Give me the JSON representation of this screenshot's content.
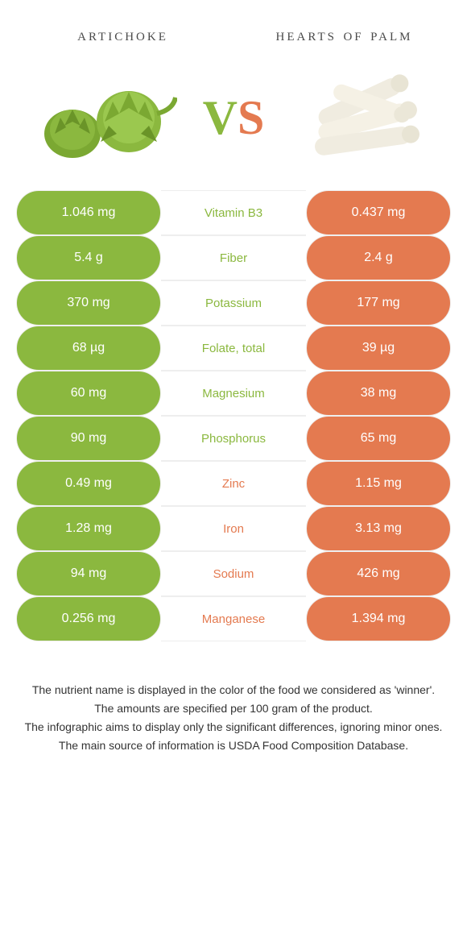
{
  "header": {
    "left_title": "artichoke",
    "right_title": "hearts of palm",
    "vs_v": "V",
    "vs_s": "S"
  },
  "colors": {
    "green": "#8bb83f",
    "orange": "#e47a50",
    "background": "#ffffff",
    "border": "#eeeeee",
    "text": "#333333"
  },
  "rows": [
    {
      "left": "1.046 mg",
      "nutrient": "Vitamin B3",
      "right": "0.437 mg",
      "winner": "green"
    },
    {
      "left": "5.4 g",
      "nutrient": "Fiber",
      "right": "2.4 g",
      "winner": "green"
    },
    {
      "left": "370 mg",
      "nutrient": "Potassium",
      "right": "177 mg",
      "winner": "green"
    },
    {
      "left": "68 µg",
      "nutrient": "Folate, total",
      "right": "39 µg",
      "winner": "green"
    },
    {
      "left": "60 mg",
      "nutrient": "Magnesium",
      "right": "38 mg",
      "winner": "green"
    },
    {
      "left": "90 mg",
      "nutrient": "Phosphorus",
      "right": "65 mg",
      "winner": "green"
    },
    {
      "left": "0.49 mg",
      "nutrient": "Zinc",
      "right": "1.15 mg",
      "winner": "orange"
    },
    {
      "left": "1.28 mg",
      "nutrient": "Iron",
      "right": "3.13 mg",
      "winner": "orange"
    },
    {
      "left": "94 mg",
      "nutrient": "Sodium",
      "right": "426 mg",
      "winner": "orange"
    },
    {
      "left": "0.256 mg",
      "nutrient": "Manganese",
      "right": "1.394 mg",
      "winner": "orange"
    }
  ],
  "footer": {
    "line1": "The nutrient name is displayed in the color of the food we considered as 'winner'.",
    "line2": "The amounts are specified per 100 gram of the product.",
    "line3": "The infographic aims to display only the significant differences, ignoring minor ones.",
    "line4": "The main source of information is USDA Food Composition Database."
  }
}
